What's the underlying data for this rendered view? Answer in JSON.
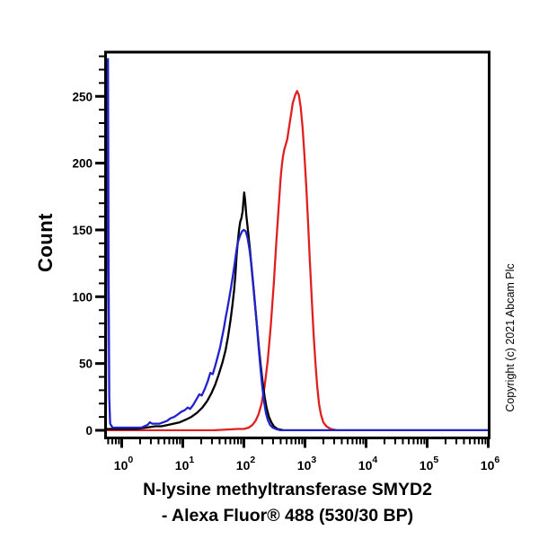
{
  "figure": {
    "ylabel": "Count",
    "xlabel_line1": "N-lysine methyltransferase SMYD2",
    "xlabel_line2": "- Alexa Fluor® 488 (530/30 BP)",
    "copyright": "Copyright (c) 2021 Abcam Plc"
  },
  "chart_data": {
    "type": "line",
    "subtype": "flow-cytometry-histogram-overlay",
    "title": "N-lysine methyltransferase SMYD2 - Alexa Fluor® 488 (530/30 BP)",
    "xlabel": "N-lysine methyltransferase SMYD2 - Alexa Fluor® 488 (530/30 BP)",
    "ylabel": "Count",
    "grid": false,
    "legend": "none",
    "x_scale": "log10",
    "x_axis": {
      "min_log10": -0.265,
      "max_log10": 6.03,
      "tick_base": "10",
      "major_tick_exponents": [
        0,
        1,
        2,
        3,
        4,
        5,
        6
      ]
    },
    "y_axis": {
      "min": 0,
      "max": 284,
      "major_ticks": [
        0,
        50,
        100,
        150,
        200,
        250
      ],
      "minor_step": 10
    },
    "series": [
      {
        "name": "red-curve",
        "color": "#e02020",
        "peak": {
          "x_log10": 2.87,
          "count": 254
        },
        "points_log10_count": [
          [
            -0.26,
            0
          ],
          [
            0.5,
            0
          ],
          [
            1.5,
            0
          ],
          [
            1.9,
            1
          ],
          [
            2.0,
            1
          ],
          [
            2.08,
            2
          ],
          [
            2.14,
            4
          ],
          [
            2.19,
            7
          ],
          [
            2.24,
            12
          ],
          [
            2.29,
            20
          ],
          [
            2.34,
            33
          ],
          [
            2.39,
            52
          ],
          [
            2.44,
            78
          ],
          [
            2.49,
            110
          ],
          [
            2.53,
            140
          ],
          [
            2.57,
            168
          ],
          [
            2.6,
            188
          ],
          [
            2.62,
            198
          ],
          [
            2.64,
            205
          ],
          [
            2.66,
            210
          ],
          [
            2.68,
            213
          ],
          [
            2.71,
            218
          ],
          [
            2.74,
            227
          ],
          [
            2.77,
            236
          ],
          [
            2.8,
            245
          ],
          [
            2.84,
            251
          ],
          [
            2.87,
            254
          ],
          [
            2.9,
            251
          ],
          [
            2.93,
            242
          ],
          [
            2.96,
            227
          ],
          [
            2.99,
            207
          ],
          [
            3.02,
            183
          ],
          [
            3.05,
            156
          ],
          [
            3.08,
            127
          ],
          [
            3.11,
            99
          ],
          [
            3.14,
            73
          ],
          [
            3.17,
            51
          ],
          [
            3.2,
            33
          ],
          [
            3.23,
            20
          ],
          [
            3.26,
            12
          ],
          [
            3.3,
            6
          ],
          [
            3.35,
            3
          ],
          [
            3.42,
            1
          ],
          [
            3.52,
            0
          ],
          [
            4.5,
            0
          ],
          [
            6.02,
            0
          ]
        ]
      },
      {
        "name": "black-curve",
        "color": "#000000",
        "peak": {
          "x_log10": 2.0,
          "count": 178
        },
        "points_log10_count": [
          [
            -0.26,
            1
          ],
          [
            0.0,
            1
          ],
          [
            0.25,
            1
          ],
          [
            0.4,
            2
          ],
          [
            0.55,
            3
          ],
          [
            0.65,
            3
          ],
          [
            0.75,
            4
          ],
          [
            0.85,
            5
          ],
          [
            0.95,
            6
          ],
          [
            1.05,
            8
          ],
          [
            1.14,
            10
          ],
          [
            1.23,
            13
          ],
          [
            1.32,
            17
          ],
          [
            1.4,
            22
          ],
          [
            1.47,
            28
          ],
          [
            1.53,
            34
          ],
          [
            1.59,
            42
          ],
          [
            1.65,
            51
          ],
          [
            1.7,
            60
          ],
          [
            1.74,
            70
          ],
          [
            1.78,
            82
          ],
          [
            1.81,
            93
          ],
          [
            1.84,
            105
          ],
          [
            1.86,
            116
          ],
          [
            1.88,
            130
          ],
          [
            1.9,
            141
          ],
          [
            1.92,
            150
          ],
          [
            1.94,
            156
          ],
          [
            1.96,
            159
          ],
          [
            1.98,
            164
          ],
          [
            1.99,
            170
          ],
          [
            2.005,
            178
          ],
          [
            2.02,
            172
          ],
          [
            2.04,
            161
          ],
          [
            2.07,
            148
          ],
          [
            2.1,
            135
          ],
          [
            2.13,
            120
          ],
          [
            2.16,
            105
          ],
          [
            2.19,
            90
          ],
          [
            2.22,
            75
          ],
          [
            2.25,
            60
          ],
          [
            2.28,
            47
          ],
          [
            2.31,
            35
          ],
          [
            2.34,
            25
          ],
          [
            2.37,
            17
          ],
          [
            2.41,
            10
          ],
          [
            2.45,
            6
          ],
          [
            2.49,
            3
          ],
          [
            2.55,
            1
          ],
          [
            2.65,
            0
          ],
          [
            3.3,
            0
          ],
          [
            6.02,
            0
          ]
        ]
      },
      {
        "name": "blue-curve",
        "color": "#2222cc",
        "peak": {
          "x_log10": 2.0,
          "count": 150
        },
        "points_log10_count": [
          [
            -0.26,
            0
          ],
          [
            -0.235,
            270
          ],
          [
            -0.225,
            278
          ],
          [
            -0.215,
            120
          ],
          [
            -0.205,
            25
          ],
          [
            -0.19,
            5
          ],
          [
            -0.15,
            2
          ],
          [
            0.0,
            2
          ],
          [
            0.2,
            2
          ],
          [
            0.32,
            2
          ],
          [
            0.42,
            4
          ],
          [
            0.46,
            6
          ],
          [
            0.5,
            5
          ],
          [
            0.56,
            5
          ],
          [
            0.62,
            5
          ],
          [
            0.68,
            6
          ],
          [
            0.74,
            7
          ],
          [
            0.8,
            9
          ],
          [
            0.86,
            10
          ],
          [
            0.92,
            12
          ],
          [
            0.98,
            14
          ],
          [
            1.03,
            15
          ],
          [
            1.08,
            17
          ],
          [
            1.12,
            16
          ],
          [
            1.17,
            19
          ],
          [
            1.22,
            23
          ],
          [
            1.27,
            27
          ],
          [
            1.31,
            26
          ],
          [
            1.36,
            31
          ],
          [
            1.41,
            37
          ],
          [
            1.45,
            43
          ],
          [
            1.49,
            42
          ],
          [
            1.53,
            48
          ],
          [
            1.57,
            55
          ],
          [
            1.61,
            62
          ],
          [
            1.64,
            69
          ],
          [
            1.67,
            76
          ],
          [
            1.7,
            84
          ],
          [
            1.73,
            91
          ],
          [
            1.76,
            99
          ],
          [
            1.79,
            107
          ],
          [
            1.82,
            116
          ],
          [
            1.85,
            125
          ],
          [
            1.87,
            132
          ],
          [
            1.89,
            138
          ],
          [
            1.91,
            142
          ],
          [
            1.94,
            146
          ],
          [
            1.97,
            149
          ],
          [
            2.0,
            150
          ],
          [
            2.03,
            149
          ],
          [
            2.06,
            144
          ],
          [
            2.09,
            136
          ],
          [
            2.12,
            125
          ],
          [
            2.15,
            111
          ],
          [
            2.18,
            96
          ],
          [
            2.21,
            80
          ],
          [
            2.24,
            63
          ],
          [
            2.27,
            47
          ],
          [
            2.3,
            33
          ],
          [
            2.33,
            22
          ],
          [
            2.36,
            13
          ],
          [
            2.39,
            8
          ],
          [
            2.43,
            4
          ],
          [
            2.47,
            2
          ],
          [
            2.52,
            1
          ],
          [
            2.6,
            0
          ],
          [
            3.2,
            0
          ],
          [
            6.02,
            0
          ]
        ]
      }
    ]
  }
}
